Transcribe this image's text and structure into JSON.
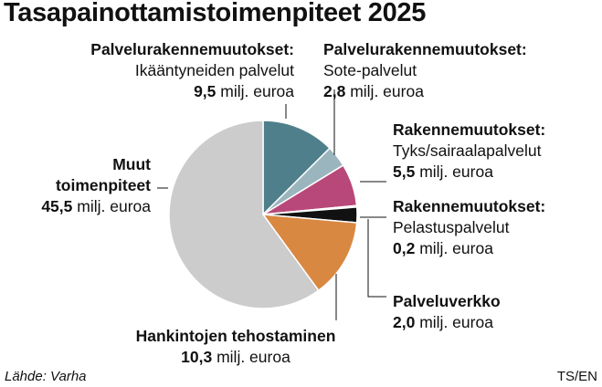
{
  "title": "Tasapainottamistoimenpiteet 2025",
  "unit": "milj. euroa",
  "source": "Lähde: Varha",
  "credit": "TS/EN",
  "colors": {
    "accent_teal": "#4f7f8a",
    "light_blue": "#9ab5bd",
    "magenta": "#b9487a",
    "black": "#111111",
    "orange": "#d98841",
    "grey": "#cccccc"
  },
  "chart_data": {
    "type": "pie",
    "title": "Tasapainottamistoimenpiteet 2025",
    "unit": "milj. euroa",
    "slices": [
      {
        "name": "Palvelurakennemuutokset: Ikääntyneiden palvelut",
        "heading": "Palvelurakennemuutokset:",
        "sub": "Ikääntyneiden palvelut",
        "value": 9.5,
        "value_label": "9,5",
        "color": "#4f7f8a"
      },
      {
        "name": "Palvelurakennemuutokset: Sote-palvelut",
        "heading": "Palvelurakennemuutokset:",
        "sub": "Sote-palvelut",
        "value": 2.8,
        "value_label": "2,8",
        "color": "#9ab5bd"
      },
      {
        "name": "Rakennemuutokset: Tyks/sairaalapalvelut",
        "heading": "Rakennemuutokset:",
        "sub": "Tyks/sairaalapalvelut",
        "value": 5.5,
        "value_label": "5,5",
        "color": "#b9487a"
      },
      {
        "name": "Rakennemuutokset: Pelastuspalvelut",
        "heading": "Rakennemuutokset:",
        "sub": "Pelastuspalvelut",
        "value": 0.2,
        "value_label": "0,2",
        "color": "#111111"
      },
      {
        "name": "Palveluverkko",
        "heading": "Palveluverkko",
        "sub": "",
        "value": 2.0,
        "value_label": "2,0",
        "color": "#111111"
      },
      {
        "name": "Hankintojen tehostaminen",
        "heading": "Hankintojen tehostaminen",
        "sub": "",
        "value": 10.3,
        "value_label": "10,3",
        "color": "#d98841"
      },
      {
        "name": "Muut toimenpiteet",
        "heading": "Muut",
        "sub": "toimenpiteet",
        "value": 45.5,
        "value_label": "45,5",
        "color": "#cccccc"
      }
    ]
  }
}
